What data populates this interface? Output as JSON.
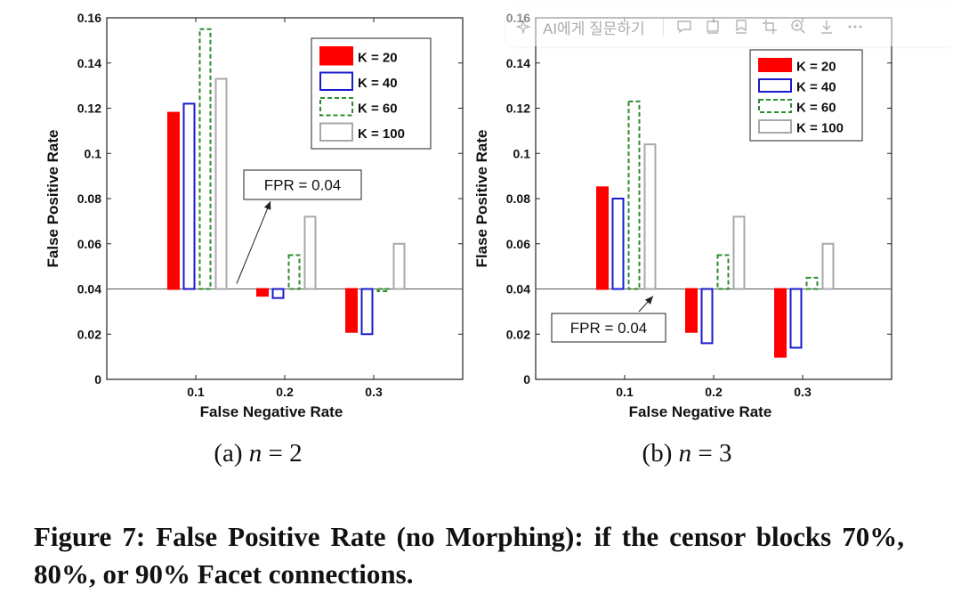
{
  "chart_data": [
    {
      "type": "bar",
      "panel": "a",
      "categories": [
        "0.1",
        "0.2",
        "0.3"
      ],
      "baseline": 0.04,
      "series": [
        {
          "name": "K = 20",
          "values": [
            0.118,
            0.037,
            0.021
          ]
        },
        {
          "name": "K = 40",
          "values": [
            0.122,
            0.036,
            0.02
          ]
        },
        {
          "name": "K = 60",
          "values": [
            0.155,
            0.055,
            0.039
          ]
        },
        {
          "name": "K = 100",
          "values": [
            0.133,
            0.072,
            0.06
          ]
        }
      ],
      "xlabel": "False Negative Rate",
      "ylabel": "False Positive Rate",
      "ylim": [
        0,
        0.16
      ],
      "yticks": [
        "0",
        "0.02",
        "0.04",
        "0.06",
        "0.08",
        "0.1",
        "0.12",
        "0.14",
        "0.16"
      ],
      "annotation": "FPR = 0.04",
      "legend_position": "top-right",
      "subcaption": {
        "prefix": "(a)",
        "variable": "n",
        "operator": "=",
        "value": "2"
      }
    },
    {
      "type": "bar",
      "panel": "b",
      "categories": [
        "0.1",
        "0.2",
        "0.3"
      ],
      "baseline": 0.04,
      "series": [
        {
          "name": "K = 20",
          "values": [
            0.085,
            0.021,
            0.01
          ]
        },
        {
          "name": "K = 40",
          "values": [
            0.08,
            0.016,
            0.014
          ]
        },
        {
          "name": "K = 60",
          "values": [
            0.123,
            0.055,
            0.045
          ]
        },
        {
          "name": "K = 100",
          "values": [
            0.104,
            0.072,
            0.06
          ]
        }
      ],
      "xlabel": "False Negative Rate",
      "ylabel": "Flase Positive Rate",
      "ylim": [
        0,
        0.16
      ],
      "yticks": [
        "0",
        "0.02",
        "0.04",
        "0.06",
        "0.08",
        "0.1",
        "0.12",
        "0.14",
        "0.16"
      ],
      "annotation": "FPR = 0.04",
      "legend_position": "top-right",
      "subcaption": {
        "prefix": "(b)",
        "variable": "n",
        "operator": "=",
        "value": "3"
      }
    }
  ],
  "series_styles": [
    {
      "name": "K = 20",
      "stroke": "#ff0000",
      "fill": "#ff0000",
      "dashed": false
    },
    {
      "name": "K = 40",
      "stroke": "#1a1acc",
      "fill": "none",
      "dashed": false
    },
    {
      "name": "K = 60",
      "stroke": "#2e8b2e",
      "fill": "none",
      "dashed": true
    },
    {
      "name": "K = 100",
      "stroke": "#a8a8a8",
      "fill": "none",
      "dashed": false
    }
  ],
  "caption": "Figure 7:  False Positive Rate (no Morphing):  if the censor blocks 70%, 80%, or 90% Facet connections.",
  "toolbar": {
    "ask_ai_label": "AI에게 질문하기",
    "icons": [
      "sparkle-icon",
      "comment-icon",
      "panel-icon",
      "bookmark-icon",
      "crop-icon",
      "zoom-in-icon",
      "download-icon",
      "more-icon"
    ]
  }
}
